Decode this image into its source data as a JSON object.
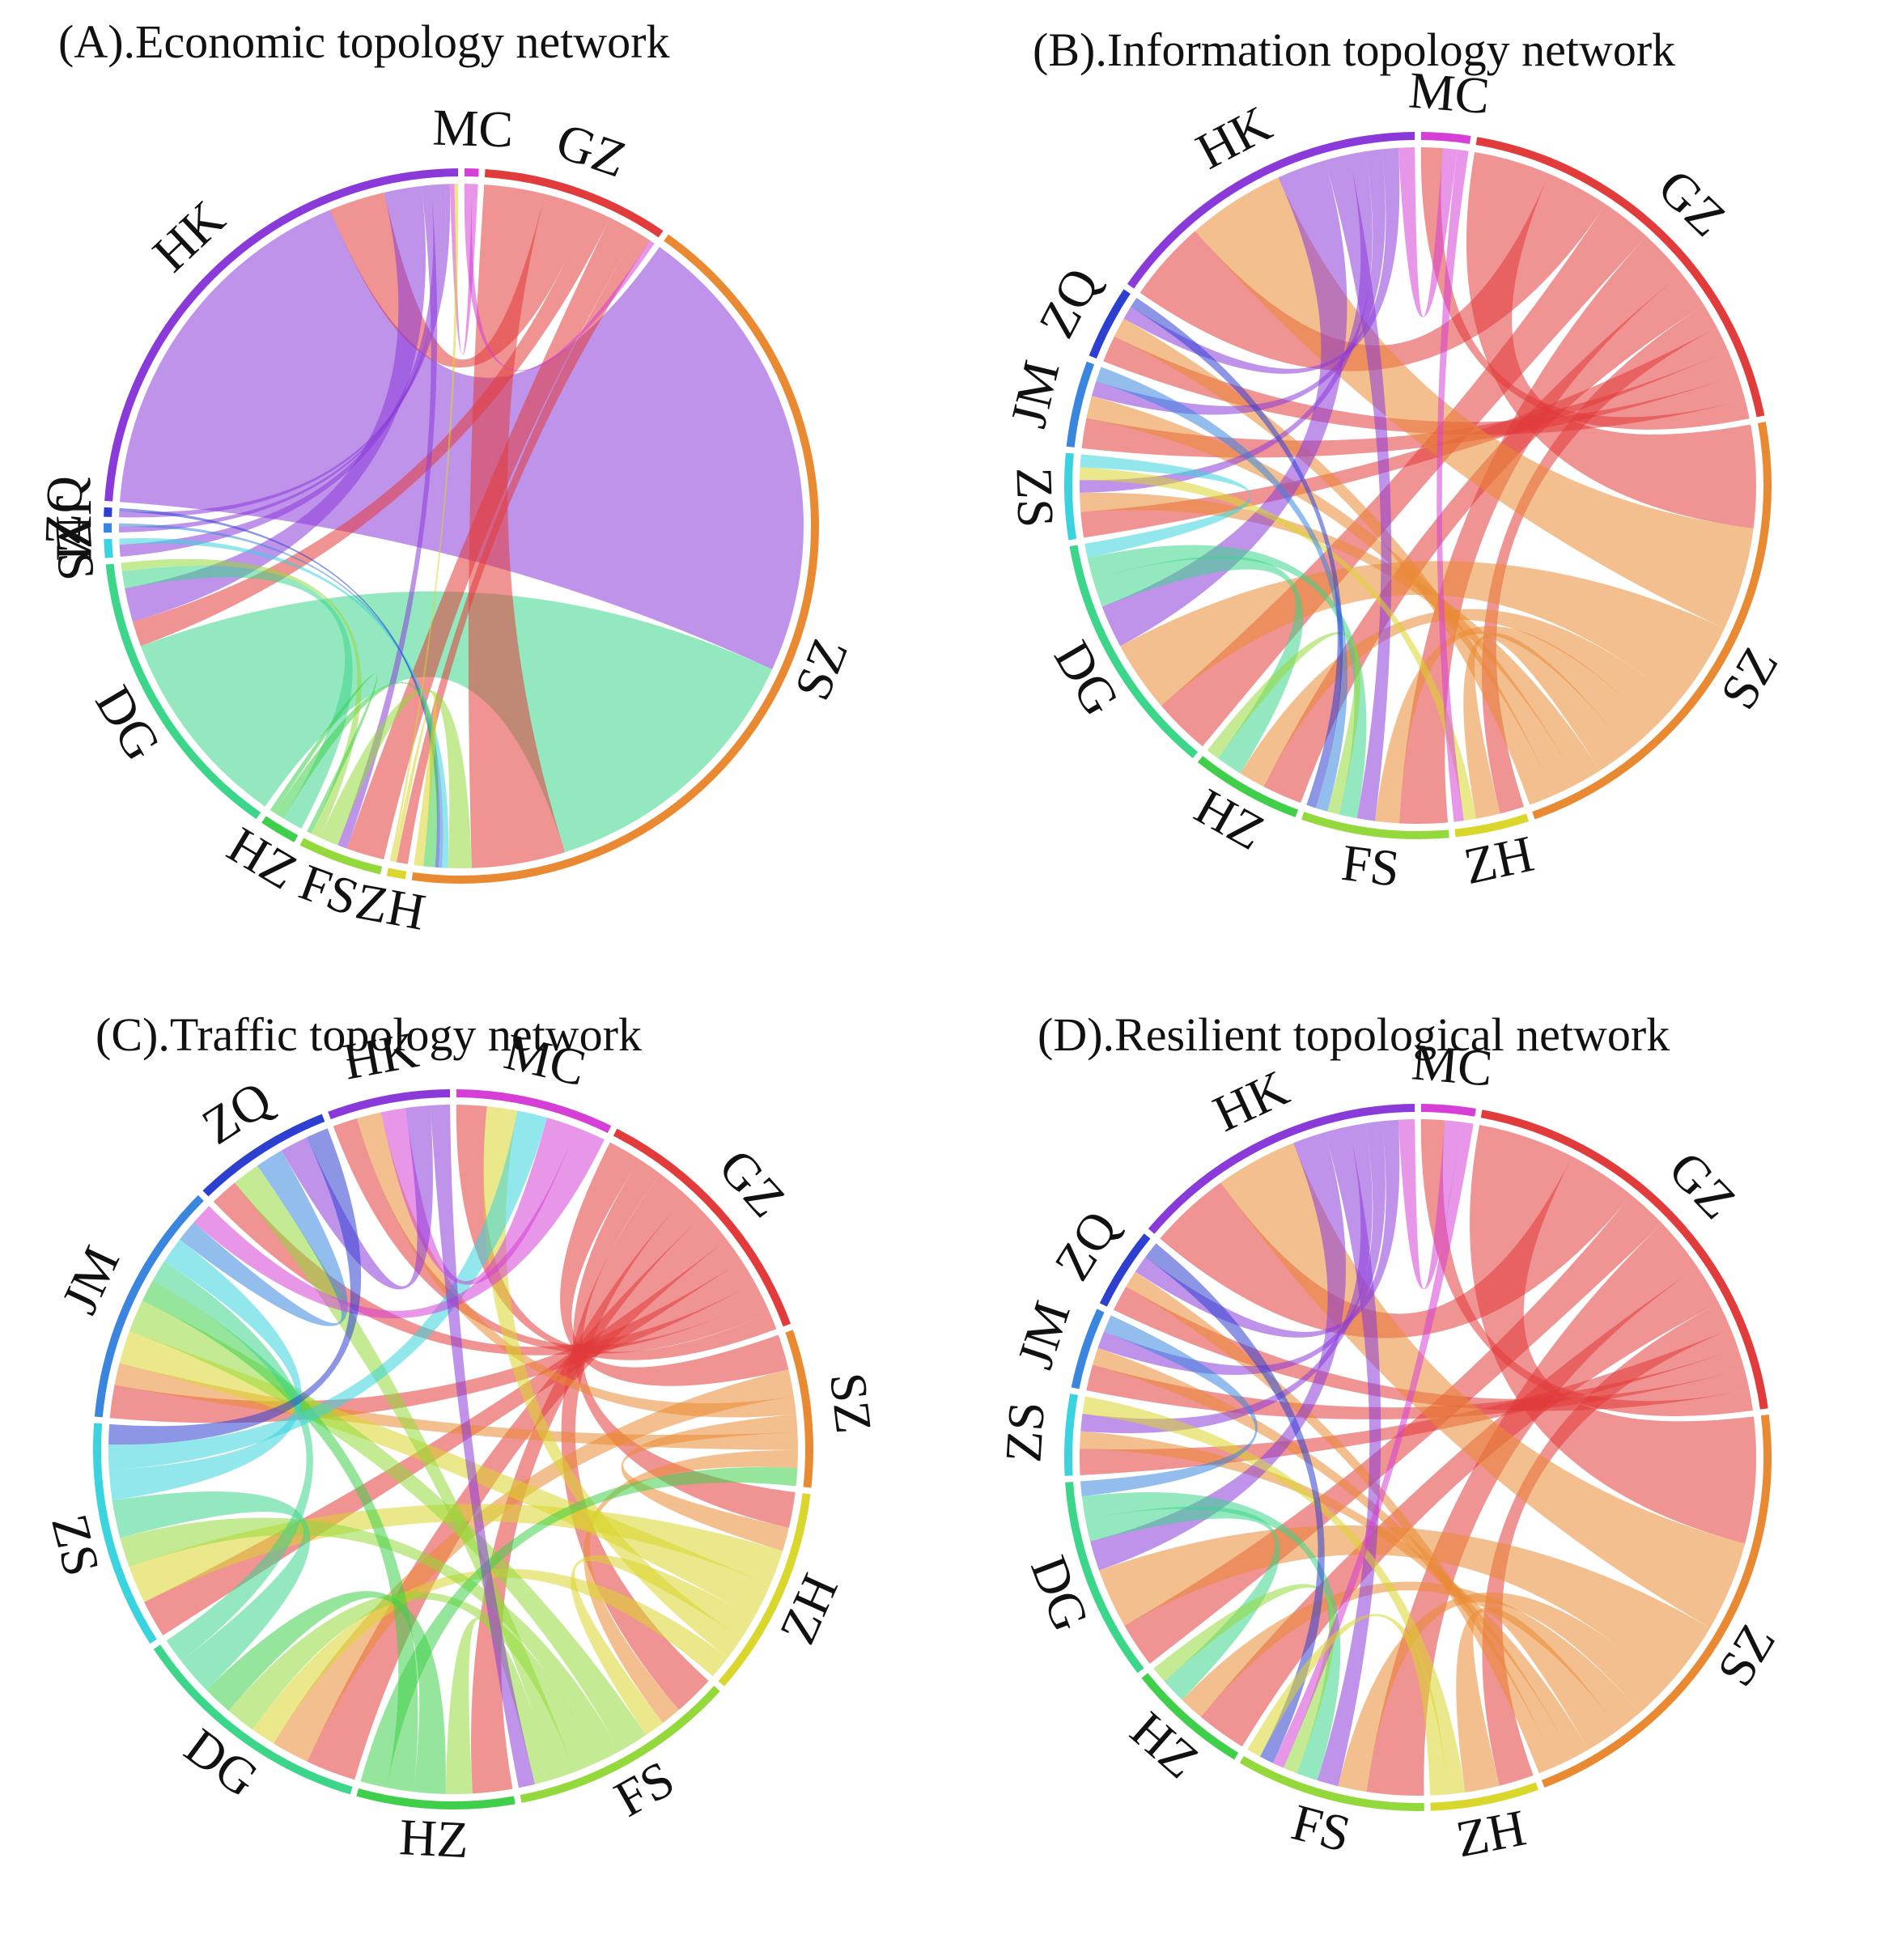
{
  "figure": {
    "panel_count": 4
  },
  "chart_data": [
    {
      "type": "chord",
      "title": "(A).Economic topology network",
      "nodes": [
        {
          "name": "MC",
          "color": "#d53fd6",
          "weight": 1.5
        },
        {
          "name": "GZ",
          "color": "#e23b3b",
          "weight": 20
        },
        {
          "name": "SZ",
          "color": "#e98a33",
          "weight": 100
        },
        {
          "name": "ZH",
          "color": "#d9d62c",
          "weight": 2
        },
        {
          "name": "FS",
          "color": "#93d93b",
          "weight": 9
        },
        {
          "name": "HZ",
          "color": "#3fcf4a",
          "weight": 4
        },
        {
          "name": "DG",
          "color": "#3cd68a",
          "weight": 32
        },
        {
          "name": "ZS",
          "color": "#39d4df",
          "weight": 2
        },
        {
          "name": "JM",
          "color": "#3a86de",
          "weight": 1
        },
        {
          "name": "ZQ",
          "color": "#2d3fd0",
          "weight": 1
        },
        {
          "name": "HK",
          "color": "#8a3ad9",
          "weight": 56
        }
      ],
      "links": [
        [
          "HK",
          "SZ",
          40
        ],
        [
          "DG",
          "SZ",
          24
        ],
        [
          "GZ",
          "SZ",
          8
        ],
        [
          "GZ",
          "HK",
          6
        ],
        [
          "GZ",
          "DG",
          3
        ],
        [
          "GZ",
          "FS",
          4
        ],
        [
          "GZ",
          "ZH",
          2
        ],
        [
          "HK",
          "DG",
          4
        ],
        [
          "HK",
          "FS",
          1
        ],
        [
          "DG",
          "HZ",
          2
        ],
        [
          "FS",
          "SZ",
          2
        ],
        [
          "HK",
          "ZS",
          1
        ],
        [
          "HK",
          "JM",
          0.5
        ],
        [
          "HK",
          "ZQ",
          0.5
        ],
        [
          "MC",
          "GZ",
          0.7
        ],
        [
          "MC",
          "HK",
          0.5
        ],
        [
          "ZS",
          "SZ",
          0.5
        ],
        [
          "JM",
          "SZ",
          0.3
        ],
        [
          "ZQ",
          "SZ",
          0.3
        ],
        [
          "HZ",
          "SZ",
          1
        ],
        [
          "ZH",
          "SZ",
          0.8
        ],
        [
          "FS",
          "DG",
          1
        ],
        [
          "HZ",
          "FS",
          0.5
        ],
        [
          "ZH",
          "HK",
          0.4
        ]
      ]
    },
    {
      "type": "chord",
      "title": "(B).Information topology network",
      "nodes": [
        {
          "name": "MC",
          "color": "#d53fd6",
          "weight": 4
        },
        {
          "name": "GZ",
          "color": "#e23b3b",
          "weight": 34
        },
        {
          "name": "SZ",
          "color": "#e98a33",
          "weight": 40
        },
        {
          "name": "ZH",
          "color": "#d9d62c",
          "weight": 6
        },
        {
          "name": "FS",
          "color": "#93d93b",
          "weight": 12
        },
        {
          "name": "HZ",
          "color": "#3fcf4a",
          "weight": 9
        },
        {
          "name": "DG",
          "color": "#3cd68a",
          "weight": 20
        },
        {
          "name": "ZS",
          "color": "#39d4df",
          "weight": 7
        },
        {
          "name": "JM",
          "color": "#3a86de",
          "weight": 7
        },
        {
          "name": "ZQ",
          "color": "#2d3fd0",
          "weight": 6
        },
        {
          "name": "HK",
          "color": "#8a3ad9",
          "weight": 27
        }
      ],
      "links": [
        [
          "GZ",
          "SZ",
          6
        ],
        [
          "GZ",
          "HK",
          5
        ],
        [
          "GZ",
          "DG",
          4
        ],
        [
          "GZ",
          "FS",
          4
        ],
        [
          "GZ",
          "HZ",
          3
        ],
        [
          "GZ",
          "ZH",
          2
        ],
        [
          "GZ",
          "ZS",
          2
        ],
        [
          "GZ",
          "JM",
          2
        ],
        [
          "GZ",
          "ZQ",
          2
        ],
        [
          "GZ",
          "MC",
          1.5
        ],
        [
          "SZ",
          "HK",
          6
        ],
        [
          "SZ",
          "DG",
          5
        ],
        [
          "SZ",
          "HZ",
          2
        ],
        [
          "SZ",
          "FS",
          2
        ],
        [
          "SZ",
          "ZH",
          2
        ],
        [
          "SZ",
          "ZS",
          1.5
        ],
        [
          "SZ",
          "JM",
          1.5
        ],
        [
          "SZ",
          "ZQ",
          1.5
        ],
        [
          "HK",
          "DG",
          3
        ],
        [
          "HK",
          "FS",
          1.5
        ],
        [
          "HK",
          "ZS",
          1
        ],
        [
          "HK",
          "JM",
          1
        ],
        [
          "HK",
          "ZQ",
          1
        ],
        [
          "DG",
          "HZ",
          2
        ],
        [
          "DG",
          "FS",
          1.5
        ],
        [
          "FS",
          "HZ",
          1
        ],
        [
          "ZH",
          "ZS",
          1
        ],
        [
          "MC",
          "HK",
          1
        ],
        [
          "MC",
          "ZH",
          0.8
        ],
        [
          "JM",
          "FS",
          1
        ],
        [
          "ZQ",
          "FS",
          0.8
        ],
        [
          "ZS",
          "DG",
          1
        ]
      ]
    },
    {
      "type": "chord",
      "title": "(C).Traffic topology network",
      "nodes": [
        {
          "name": "MC",
          "color": "#d53fd6",
          "weight": 9
        },
        {
          "name": "GZ",
          "color": "#e23b3b",
          "weight": 15
        },
        {
          "name": "SZ",
          "color": "#e98a33",
          "weight": 9
        },
        {
          "name": "ZH",
          "color": "#d9d62c",
          "weight": 12
        },
        {
          "name": "FS",
          "color": "#93d93b",
          "weight": 13
        },
        {
          "name": "HZ",
          "color": "#3fcf4a",
          "weight": 9
        },
        {
          "name": "DG",
          "color": "#3cd68a",
          "weight": 14
        },
        {
          "name": "ZS",
          "color": "#39d4df",
          "weight": 13
        },
        {
          "name": "JM",
          "color": "#3a86de",
          "weight": 14
        },
        {
          "name": "ZQ",
          "color": "#2d3fd0",
          "weight": 8
        },
        {
          "name": "HK",
          "color": "#8a3ad9",
          "weight": 7
        }
      ],
      "links": [
        [
          "GZ",
          "SZ",
          2
        ],
        [
          "GZ",
          "ZH",
          1.5
        ],
        [
          "GZ",
          "FS",
          2
        ],
        [
          "GZ",
          "HZ",
          1.5
        ],
        [
          "GZ",
          "DG",
          2
        ],
        [
          "GZ",
          "ZS",
          1.5
        ],
        [
          "GZ",
          "JM",
          1.5
        ],
        [
          "GZ",
          "ZQ",
          1
        ],
        [
          "GZ",
          "HK",
          1
        ],
        [
          "GZ",
          "MC",
          1
        ],
        [
          "SZ",
          "DG",
          1.5
        ],
        [
          "SZ",
          "HK",
          1
        ],
        [
          "SZ",
          "ZH",
          1
        ],
        [
          "SZ",
          "JM",
          1
        ],
        [
          "SZ",
          "FS",
          1
        ],
        [
          "ZH",
          "ZS",
          1.5
        ],
        [
          "ZH",
          "JM",
          1.5
        ],
        [
          "ZH",
          "FS",
          1
        ],
        [
          "ZH",
          "MC",
          1
        ],
        [
          "ZH",
          "DG",
          1
        ],
        [
          "FS",
          "JM",
          1.5
        ],
        [
          "FS",
          "ZS",
          1.2
        ],
        [
          "FS",
          "DG",
          1.2
        ],
        [
          "FS",
          "ZQ",
          1
        ],
        [
          "FS",
          "HZ",
          1
        ],
        [
          "HZ",
          "DG",
          1.2
        ],
        [
          "HZ",
          "JM",
          1
        ],
        [
          "HZ",
          "SZ",
          1
        ],
        [
          "DG",
          "ZS",
          1.5
        ],
        [
          "DG",
          "JM",
          1
        ],
        [
          "ZS",
          "JM",
          1.2
        ],
        [
          "ZS",
          "MC",
          1
        ],
        [
          "JM",
          "ZQ",
          1
        ],
        [
          "MC",
          "HK",
          1
        ],
        [
          "HK",
          "ZQ",
          1
        ],
        [
          "MC",
          "JM",
          1
        ],
        [
          "HK",
          "FS",
          0.8
        ],
        [
          "ZQ",
          "ZS",
          0.8
        ]
      ]
    },
    {
      "type": "chord",
      "title": "(D).Resilient topological network",
      "nodes": [
        {
          "name": "MC",
          "color": "#d53fd6",
          "weight": 4
        },
        {
          "name": "GZ",
          "color": "#e23b3b",
          "weight": 32
        },
        {
          "name": "SZ",
          "color": "#e98a33",
          "weight": 34
        },
        {
          "name": "ZH",
          "color": "#d9d62c",
          "weight": 8
        },
        {
          "name": "FS",
          "color": "#93d93b",
          "weight": 14
        },
        {
          "name": "HZ",
          "color": "#3fcf4a",
          "weight": 9
        },
        {
          "name": "DG",
          "color": "#3cd68a",
          "weight": 15
        },
        {
          "name": "ZS",
          "color": "#39d4df",
          "weight": 6
        },
        {
          "name": "JM",
          "color": "#3a86de",
          "weight": 6
        },
        {
          "name": "ZQ",
          "color": "#2d3fd0",
          "weight": 6
        },
        {
          "name": "HK",
          "color": "#8a3ad9",
          "weight": 22
        }
      ],
      "links": [
        [
          "GZ",
          "SZ",
          7
        ],
        [
          "GZ",
          "HK",
          5
        ],
        [
          "GZ",
          "DG",
          3
        ],
        [
          "GZ",
          "FS",
          4
        ],
        [
          "GZ",
          "HZ",
          3
        ],
        [
          "GZ",
          "ZH",
          2
        ],
        [
          "GZ",
          "ZS",
          1.5
        ],
        [
          "GZ",
          "JM",
          1.5
        ],
        [
          "GZ",
          "ZQ",
          1.5
        ],
        [
          "GZ",
          "MC",
          1.5
        ],
        [
          "SZ",
          "HK",
          5
        ],
        [
          "SZ",
          "DG",
          4
        ],
        [
          "SZ",
          "FS",
          2
        ],
        [
          "SZ",
          "HZ",
          1.5
        ],
        [
          "SZ",
          "ZH",
          2
        ],
        [
          "SZ",
          "ZS",
          1
        ],
        [
          "SZ",
          "JM",
          1
        ],
        [
          "SZ",
          "ZQ",
          1
        ],
        [
          "HK",
          "DG",
          2
        ],
        [
          "HK",
          "FS",
          1.5
        ],
        [
          "HK",
          "ZS",
          1
        ],
        [
          "HK",
          "JM",
          1
        ],
        [
          "HK",
          "ZQ",
          1
        ],
        [
          "DG",
          "HZ",
          1.5
        ],
        [
          "DG",
          "FS",
          1.5
        ],
        [
          "FS",
          "HZ",
          1
        ],
        [
          "ZH",
          "ZS",
          1
        ],
        [
          "MC",
          "HK",
          1
        ],
        [
          "MC",
          "FS",
          0.8
        ],
        [
          "ZQ",
          "FS",
          1
        ],
        [
          "JM",
          "DG",
          1
        ],
        [
          "ZH",
          "FS",
          1
        ]
      ]
    }
  ]
}
